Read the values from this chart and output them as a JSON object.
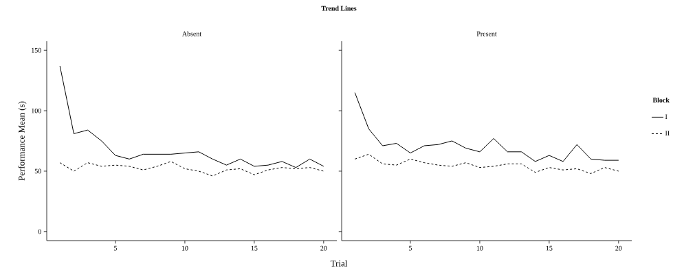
{
  "chart_data": [
    {
      "type": "line",
      "title": "Trend Lines",
      "subtitle": "Absent",
      "xlabel": "Trial",
      "ylabel": "Performance Mean (s)",
      "x": [
        1,
        2,
        3,
        4,
        5,
        6,
        7,
        8,
        9,
        10,
        11,
        12,
        13,
        14,
        15,
        16,
        17,
        18,
        19,
        20
      ],
      "xlim": [
        0.05,
        20.95
      ],
      "ylim": [
        -7.5,
        157.5
      ],
      "xticks": [
        5,
        10,
        15,
        20
      ],
      "yticks": [
        0,
        50,
        100,
        150
      ],
      "marker": "none",
      "grid": false,
      "series": [
        {
          "color": "#000000",
          "line_style": "solid",
          "values": [
            137,
            81,
            84,
            75,
            63,
            60,
            64,
            64,
            64,
            65,
            66,
            60,
            55,
            60,
            54,
            55,
            58,
            53,
            60,
            54
          ]
        },
        {
          "color": "#000000",
          "line_style": "dashed",
          "values": [
            57,
            50,
            57,
            54,
            55,
            54,
            51,
            54,
            58,
            52,
            50,
            46,
            51,
            52,
            47,
            51,
            53,
            52,
            53,
            50
          ]
        }
      ]
    },
    {
      "type": "line",
      "subtitle": "Present",
      "legend_title": "Block",
      "legend": "right",
      "x": [
        1,
        2,
        3,
        4,
        5,
        6,
        7,
        8,
        9,
        10,
        11,
        12,
        13,
        14,
        15,
        16,
        17,
        18,
        19,
        20
      ],
      "xlim": [
        0.05,
        20.95
      ],
      "ylim": [
        -7.5,
        157.5
      ],
      "xticks": [
        5,
        10,
        15,
        20
      ],
      "yticks": [
        0,
        50,
        100,
        150
      ],
      "tick_labels": "x",
      "marker": "none",
      "grid": false,
      "series": [
        {
          "name": "I",
          "color": "#000000",
          "line_style": "solid",
          "values": [
            115,
            85,
            71,
            73,
            65,
            71,
            72,
            75,
            69,
            66,
            77,
            66,
            66,
            58,
            63,
            58,
            72,
            60,
            59,
            59
          ]
        },
        {
          "name": "II",
          "color": "#000000",
          "line_style": "dashed",
          "values": [
            60,
            64,
            56,
            55,
            60,
            57,
            55,
            54,
            57,
            53,
            54,
            56,
            56,
            49,
            53,
            51,
            52,
            48,
            53,
            50
          ]
        }
      ]
    }
  ]
}
